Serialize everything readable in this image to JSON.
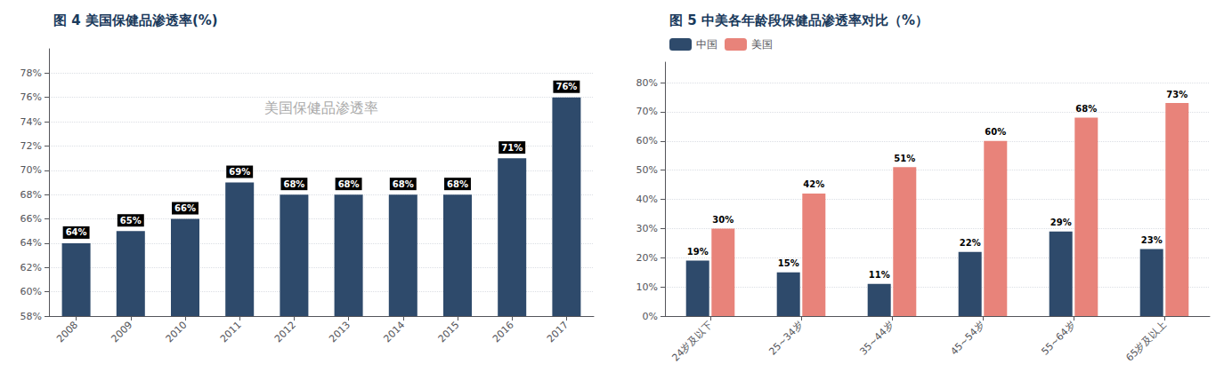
{
  "chart_data": [
    {
      "type": "bar",
      "title": "图 4 美国保健品渗透率(%)",
      "annotation": "美国保健品渗透率",
      "categories": [
        "2008",
        "2009",
        "2010",
        "2011",
        "2012",
        "2013",
        "2014",
        "2015",
        "2016",
        "2017"
      ],
      "values": [
        64,
        65,
        66,
        69,
        68,
        68,
        68,
        68,
        71,
        76
      ],
      "value_labels": [
        "64%",
        "65%",
        "66%",
        "69%",
        "68%",
        "68%",
        "68%",
        "68%",
        "71%",
        "76%"
      ],
      "color": "#2E4A6B",
      "ylim": [
        58,
        80
      ],
      "yticks": [
        {
          "value": 58,
          "label": "58%"
        },
        {
          "value": 60,
          "label": "60%"
        },
        {
          "value": 62,
          "label": "62%"
        },
        {
          "value": 64,
          "label": "64%"
        },
        {
          "value": 66,
          "label": "66%"
        },
        {
          "value": 68,
          "label": "68%"
        },
        {
          "value": 70,
          "label": "70%"
        },
        {
          "value": 72,
          "label": "72%"
        },
        {
          "value": 74,
          "label": "74%"
        },
        {
          "value": 76,
          "label": "76%"
        },
        {
          "value": 78,
          "label": "78%"
        }
      ],
      "grid": true,
      "data_labels": true
    },
    {
      "type": "bar",
      "title": "图 5 中美各年龄段保健品渗透率对比（%）",
      "categories": [
        "24岁及以下",
        "25~34岁",
        "35~44岁",
        "45~54岁",
        "55~64岁",
        "65岁及以上"
      ],
      "series": [
        {
          "name": "中国",
          "color": "#2E4A6B",
          "values": [
            19,
            15,
            11,
            22,
            29,
            23
          ],
          "value_labels": [
            "19%",
            "15%",
            "11%",
            "22%",
            "29%",
            "23%"
          ]
        },
        {
          "name": "美国",
          "color": "#E8837A",
          "values": [
            30,
            42,
            51,
            60,
            68,
            73
          ],
          "value_labels": [
            "30%",
            "42%",
            "51%",
            "60%",
            "68%",
            "73%"
          ]
        }
      ],
      "ylim": [
        0,
        87
      ],
      "yticks": [
        {
          "value": 0,
          "label": "0%"
        },
        {
          "value": 10,
          "label": "10%"
        },
        {
          "value": 20,
          "label": "20%"
        },
        {
          "value": 30,
          "label": "30%"
        },
        {
          "value": 40,
          "label": "40%"
        },
        {
          "value": 50,
          "label": "50%"
        },
        {
          "value": 60,
          "label": "60%"
        },
        {
          "value": 70,
          "label": "70%"
        },
        {
          "value": 80,
          "label": "80%"
        }
      ],
      "grid": true,
      "legend": "upper left",
      "data_labels": true
    }
  ]
}
